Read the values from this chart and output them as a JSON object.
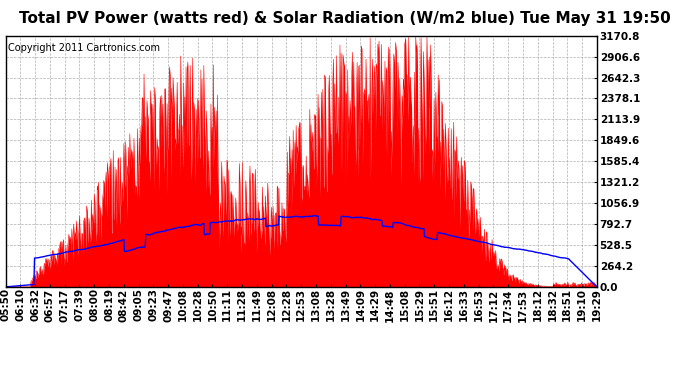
{
  "title": "Total PV Power (watts red) & Solar Radiation (W/m2 blue) Tue May 31 19:50",
  "copyright_text": "Copyright 2011 Cartronics.com",
  "y_max": 3170.8,
  "y_ticks": [
    0.0,
    264.2,
    528.5,
    792.7,
    1056.9,
    1321.2,
    1585.4,
    1849.6,
    2113.9,
    2378.1,
    2642.3,
    2906.6,
    3170.8
  ],
  "x_labels": [
    "05:50",
    "06:10",
    "06:32",
    "06:57",
    "07:17",
    "07:39",
    "08:00",
    "08:19",
    "08:42",
    "09:05",
    "09:23",
    "09:47",
    "10:08",
    "10:28",
    "10:50",
    "11:11",
    "11:28",
    "11:49",
    "12:08",
    "12:28",
    "12:53",
    "13:08",
    "13:28",
    "13:49",
    "14:09",
    "14:29",
    "14:48",
    "15:08",
    "15:29",
    "15:51",
    "16:12",
    "16:33",
    "16:53",
    "17:12",
    "17:34",
    "17:53",
    "18:12",
    "18:32",
    "18:51",
    "19:10",
    "19:29"
  ],
  "bg_color": "#ffffff",
  "plot_bg_color": "#ffffff",
  "red_fill_color": "#ff0000",
  "blue_line_color": "#0000ff",
  "grid_color": "#b0b0b0",
  "title_fontsize": 11,
  "copyright_fontsize": 7,
  "tick_fontsize": 7.5
}
